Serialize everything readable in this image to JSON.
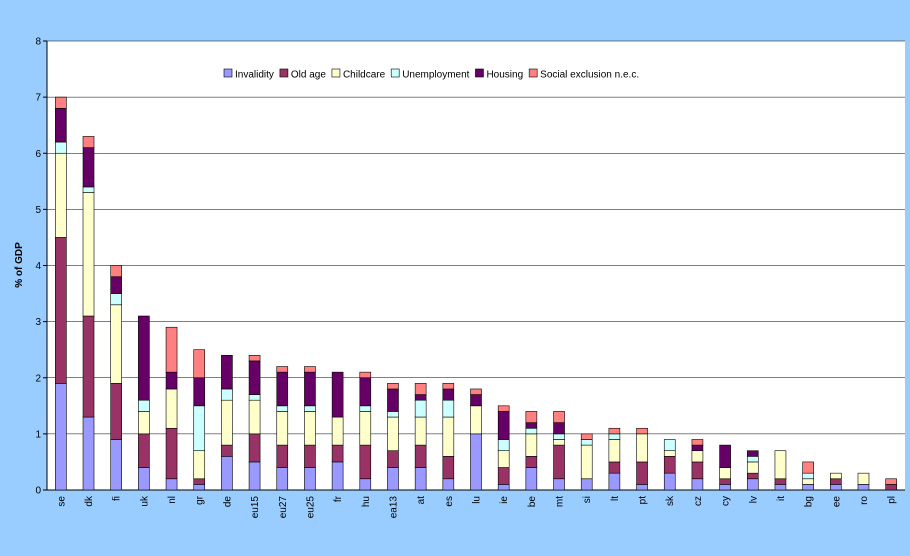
{
  "chart_data": {
    "type": "bar",
    "stacked": true,
    "y_label": "% of GDP",
    "legend": "top",
    "grid": true,
    "categories": [
      "se",
      "dk",
      "fi",
      "uk",
      "nl",
      "gr",
      "de",
      "eu15",
      "eu27",
      "eu25",
      "fr",
      "hu",
      "ea13",
      "at",
      "es",
      "lu",
      "ie",
      "be",
      "mt",
      "si",
      "lt",
      "pt",
      "sk",
      "cz",
      "cy",
      "lv",
      "it",
      "bg",
      "ee",
      "ro",
      "pl"
    ],
    "series": [
      {
        "name": "Invalidity",
        "color": "#9999ff",
        "values": [
          1.9,
          1.3,
          0.9,
          0.4,
          0.2,
          0.1,
          0.6,
          0.5,
          0.4,
          0.4,
          0.5,
          0.2,
          0.4,
          0.4,
          0.2,
          1.0,
          0.1,
          0.4,
          0.2,
          0.2,
          0.3,
          0.1,
          0.3,
          0.2,
          0.1,
          0.2,
          0.1,
          0.1,
          0.1,
          0.1,
          0
        ]
      },
      {
        "name": "Old age",
        "color": "#993366",
        "values": [
          2.6,
          1.8,
          1.0,
          0.6,
          0.9,
          0.1,
          0.2,
          0.5,
          0.4,
          0.4,
          0.3,
          0.6,
          0.3,
          0.4,
          0.4,
          0,
          0.3,
          0.2,
          0.6,
          0,
          0.2,
          0.4,
          0.3,
          0.3,
          0.1,
          0.1,
          0.1,
          0,
          0.1,
          0,
          0.1
        ]
      },
      {
        "name": "Childcare",
        "color": "#ffffcc",
        "values": [
          1.5,
          2.2,
          1.4,
          0.4,
          0.7,
          0.5,
          0.8,
          0.6,
          0.6,
          0.6,
          0.5,
          0.6,
          0.6,
          0.5,
          0.7,
          0.5,
          0.3,
          0.4,
          0.1,
          0.6,
          0.4,
          0.5,
          0.1,
          0.2,
          0.2,
          0.2,
          0.5,
          0.1,
          0.1,
          0.2,
          0
        ]
      },
      {
        "name": "Unemployment",
        "color": "#ccffff",
        "values": [
          0.2,
          0.1,
          0.2,
          0.2,
          0,
          0.8,
          0.2,
          0.1,
          0.1,
          0.1,
          0,
          0.1,
          0.1,
          0.3,
          0.3,
          0,
          0.2,
          0.1,
          0.1,
          0.1,
          0.1,
          0,
          0.2,
          0,
          0,
          0.1,
          0,
          0.1,
          0,
          0,
          0
        ]
      },
      {
        "name": "Housing",
        "color": "#660066",
        "values": [
          0.6,
          0.7,
          0.3,
          1.5,
          0.3,
          0.5,
          0.6,
          0.6,
          0.6,
          0.6,
          0.8,
          0.5,
          0.4,
          0.1,
          0.2,
          0.2,
          0.5,
          0.1,
          0.2,
          0,
          0,
          0,
          0,
          0.1,
          0.4,
          0.1,
          0,
          0,
          0,
          0,
          0
        ]
      },
      {
        "name": "Social exclusion n.e.c.",
        "color": "#ff8080",
        "values": [
          0.2,
          0.2,
          0.2,
          0,
          0.8,
          0.5,
          0,
          0.1,
          0.1,
          0.1,
          0,
          0.1,
          0.1,
          0.2,
          0.1,
          0.1,
          0.1,
          0.2,
          0.2,
          0.1,
          0.1,
          0.1,
          0,
          0.1,
          0,
          0,
          0,
          0.2,
          0,
          0,
          0.1
        ]
      }
    ],
    "ylim": [
      0,
      8
    ],
    "yticks": [
      0,
      1,
      2,
      3,
      4,
      5,
      6,
      7,
      8
    ]
  }
}
